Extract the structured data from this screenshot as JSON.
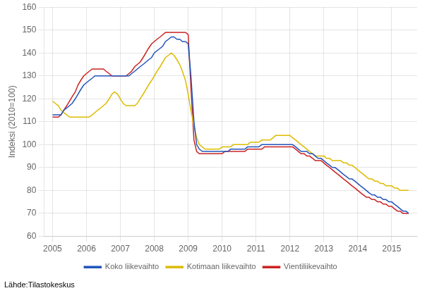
{
  "chart_data": {
    "type": "line",
    "y_label": "Indeksi (2010=100)",
    "annotations": [
      "Lähde:Tilastokeskus"
    ],
    "x": [
      2005.0,
      2005.08,
      2005.17,
      2005.25,
      2005.33,
      2005.42,
      2005.5,
      2005.58,
      2005.67,
      2005.75,
      2005.83,
      2005.92,
      2006.0,
      2006.08,
      2006.17,
      2006.25,
      2006.33,
      2006.42,
      2006.5,
      2006.58,
      2006.67,
      2006.75,
      2006.83,
      2006.92,
      2007.0,
      2007.08,
      2007.17,
      2007.25,
      2007.33,
      2007.42,
      2007.5,
      2007.58,
      2007.67,
      2007.75,
      2007.83,
      2007.92,
      2008.0,
      2008.08,
      2008.17,
      2008.25,
      2008.33,
      2008.42,
      2008.5,
      2008.58,
      2008.67,
      2008.75,
      2008.83,
      2008.92,
      2009.0,
      2009.08,
      2009.17,
      2009.25,
      2009.33,
      2009.42,
      2009.5,
      2009.58,
      2009.67,
      2009.75,
      2009.83,
      2009.92,
      2010.0,
      2010.08,
      2010.17,
      2010.25,
      2010.33,
      2010.42,
      2010.5,
      2010.58,
      2010.67,
      2010.75,
      2010.83,
      2010.92,
      2011.0,
      2011.08,
      2011.17,
      2011.25,
      2011.33,
      2011.42,
      2011.5,
      2011.58,
      2011.67,
      2011.75,
      2011.83,
      2011.92,
      2012.0,
      2012.08,
      2012.17,
      2012.25,
      2012.33,
      2012.42,
      2012.5,
      2012.58,
      2012.67,
      2012.75,
      2012.83,
      2012.92,
      2013.0,
      2013.08,
      2013.17,
      2013.25,
      2013.33,
      2013.42,
      2013.5,
      2013.58,
      2013.67,
      2013.75,
      2013.83,
      2013.92,
      2014.0,
      2014.08,
      2014.17,
      2014.25,
      2014.33,
      2014.42,
      2014.5,
      2014.58,
      2014.67,
      2014.75,
      2014.83,
      2014.92,
      2015.0,
      2015.08,
      2015.17,
      2015.25,
      2015.33,
      2015.42,
      2015.5
    ],
    "series": [
      {
        "name": "Koko liikevaihto",
        "color": "#2255bb",
        "values": [
          113,
          113,
          113,
          113,
          115,
          116,
          117,
          118,
          120,
          122,
          124,
          126,
          127,
          128,
          129,
          130,
          130,
          130,
          130,
          130,
          130,
          130,
          130,
          130,
          130,
          130,
          130,
          130,
          131,
          132,
          133,
          134,
          135,
          136,
          137,
          138,
          140,
          141,
          142,
          143,
          145,
          146,
          147,
          147,
          146,
          146,
          145,
          145,
          144,
          130,
          110,
          100,
          98,
          97,
          97,
          97,
          97,
          97,
          97,
          97,
          97,
          97,
          97,
          98,
          98,
          98,
          98,
          98,
          98,
          99,
          99,
          99,
          99,
          99,
          100,
          100,
          100,
          100,
          100,
          100,
          100,
          100,
          100,
          100,
          100,
          100,
          99,
          98,
          97,
          97,
          97,
          96,
          96,
          95,
          94,
          94,
          93,
          92,
          91,
          90,
          90,
          89,
          88,
          87,
          86,
          85,
          85,
          84,
          83,
          82,
          81,
          80,
          79,
          78,
          78,
          77,
          77,
          76,
          76,
          75,
          75,
          74,
          73,
          72,
          71,
          71,
          70
        ]
      },
      {
        "name": "Kotimaan liikevaihto",
        "color": "#ddbb00",
        "values": [
          119,
          118,
          117,
          115,
          114,
          113,
          112,
          112,
          112,
          112,
          112,
          112,
          112,
          112,
          113,
          114,
          115,
          116,
          117,
          118,
          120,
          122,
          123,
          122,
          120,
          118,
          117,
          117,
          117,
          117,
          118,
          120,
          122,
          124,
          126,
          128,
          130,
          132,
          134,
          136,
          138,
          139,
          140,
          139,
          137,
          135,
          132,
          128,
          122,
          115,
          108,
          103,
          100,
          99,
          98,
          98,
          98,
          98,
          98,
          98,
          99,
          99,
          99,
          99,
          100,
          100,
          100,
          100,
          100,
          100,
          101,
          101,
          101,
          101,
          102,
          102,
          102,
          102,
          103,
          104,
          104,
          104,
          104,
          104,
          104,
          103,
          102,
          101,
          100,
          99,
          98,
          97,
          96,
          95,
          95,
          95,
          95,
          94,
          94,
          93,
          93,
          93,
          93,
          92,
          92,
          91,
          91,
          90,
          89,
          88,
          87,
          86,
          85,
          85,
          84,
          84,
          83,
          83,
          82,
          82,
          82,
          81,
          81,
          80,
          80,
          80,
          80
        ]
      },
      {
        "name": "Vientiliikevaihto",
        "color": "#cc2222",
        "values": [
          112,
          112,
          112,
          113,
          115,
          117,
          119,
          121,
          123,
          126,
          128,
          130,
          131,
          132,
          133,
          133,
          133,
          133,
          133,
          132,
          131,
          130,
          130,
          130,
          130,
          130,
          130,
          131,
          132,
          134,
          135,
          136,
          138,
          140,
          142,
          144,
          145,
          146,
          147,
          148,
          149,
          149,
          149,
          149,
          149,
          149,
          149,
          149,
          148,
          125,
          102,
          97,
          96,
          96,
          96,
          96,
          96,
          96,
          96,
          96,
          96,
          97,
          97,
          97,
          97,
          97,
          97,
          97,
          97,
          98,
          98,
          98,
          98,
          98,
          98,
          99,
          99,
          99,
          99,
          99,
          99,
          99,
          99,
          99,
          99,
          99,
          98,
          97,
          96,
          96,
          95,
          95,
          94,
          93,
          93,
          93,
          92,
          91,
          90,
          89,
          88,
          87,
          86,
          85,
          84,
          83,
          82,
          81,
          80,
          79,
          78,
          77,
          77,
          76,
          76,
          75,
          75,
          74,
          74,
          73,
          73,
          72,
          71,
          71,
          70,
          70,
          70
        ]
      }
    ],
    "xlim": [
      2004.75,
      2015.75
    ],
    "xticks": [
      2005,
      2006,
      2007,
      2008,
      2009,
      2010,
      2011,
      2012,
      2013,
      2014,
      2015
    ],
    "ylim": [
      60,
      160
    ],
    "yticks": [
      60,
      70,
      80,
      90,
      100,
      110,
      120,
      130,
      140,
      150,
      160
    ],
    "grid": true,
    "legend": "bottom"
  }
}
